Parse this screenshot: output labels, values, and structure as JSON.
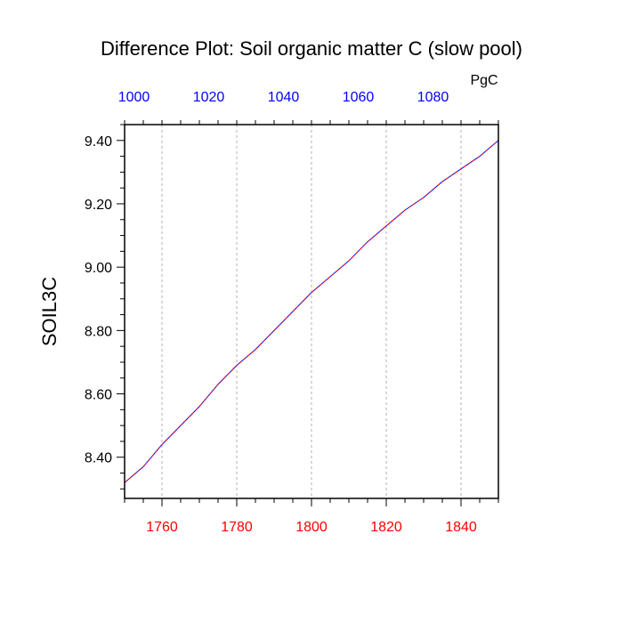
{
  "chart_data": {
    "type": "line",
    "title": "Difference Plot: Soil organic matter C (slow pool)",
    "ylabel": "SOIL3C",
    "ylim": [
      8.27,
      9.45
    ],
    "y_ticks": [
      "8.40",
      "8.60",
      "8.80",
      "9.00",
      "9.20",
      "9.40"
    ],
    "x_bottom": {
      "range": [
        1750,
        1850
      ],
      "ticks": [
        "1760",
        "1780",
        "1800",
        "1820",
        "1840"
      ],
      "color": "#ff0000"
    },
    "x_top": {
      "unit_label": "PgC",
      "range": [
        997.5,
        1097.5
      ],
      "ticks": [
        "1000",
        "1020",
        "1040",
        "1060",
        "1080"
      ],
      "color": "#0000ff"
    },
    "grid": "vertical-dotted",
    "series": [
      {
        "line_color": "#0000ff",
        "dash_color": "#ff0000",
        "x": [
          1750,
          1755,
          1760,
          1765,
          1770,
          1775,
          1780,
          1785,
          1790,
          1795,
          1800,
          1805,
          1810,
          1815,
          1820,
          1825,
          1830,
          1835,
          1840,
          1845,
          1850
        ],
        "y": [
          8.32,
          8.37,
          8.44,
          8.5,
          8.56,
          8.63,
          8.69,
          8.74,
          8.8,
          8.86,
          8.92,
          8.97,
          9.02,
          9.08,
          9.13,
          9.18,
          9.22,
          9.27,
          9.31,
          9.35,
          9.4
        ]
      }
    ]
  }
}
